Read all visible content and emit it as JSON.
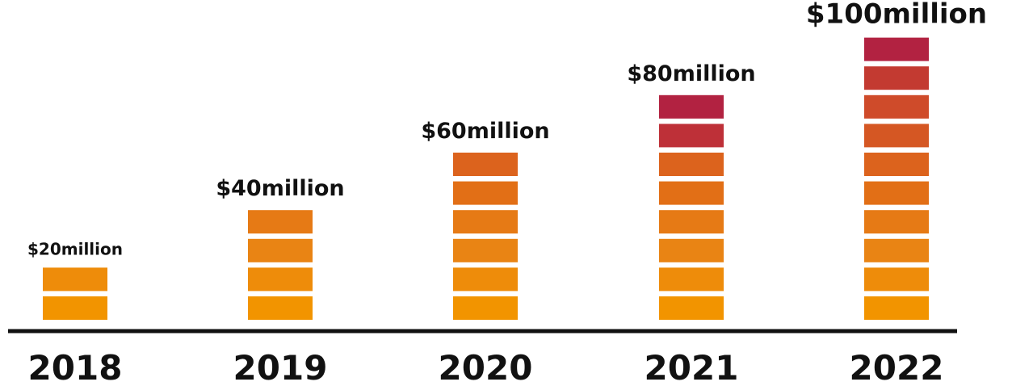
{
  "chart_data": {
    "type": "bar",
    "title": "",
    "xlabel": "",
    "ylabel": "",
    "categories": [
      "2018",
      "2019",
      "2020",
      "2021",
      "2022"
    ],
    "values": [
      20,
      40,
      60,
      80,
      100
    ],
    "unit": "million USD",
    "data_labels": [
      "$20million",
      "$40million",
      "$60million",
      "$80million",
      "$100million"
    ],
    "blocks_per_bar": [
      2,
      4,
      6,
      8,
      10
    ],
    "ylim": [
      0,
      100
    ],
    "grid": false,
    "legend": "none",
    "colors": {
      "base": "#F29400",
      "mid": "#E26F16",
      "high": "#CF4B2A",
      "top": "#B22241",
      "axis": "#111111",
      "text": "#111111"
    }
  }
}
